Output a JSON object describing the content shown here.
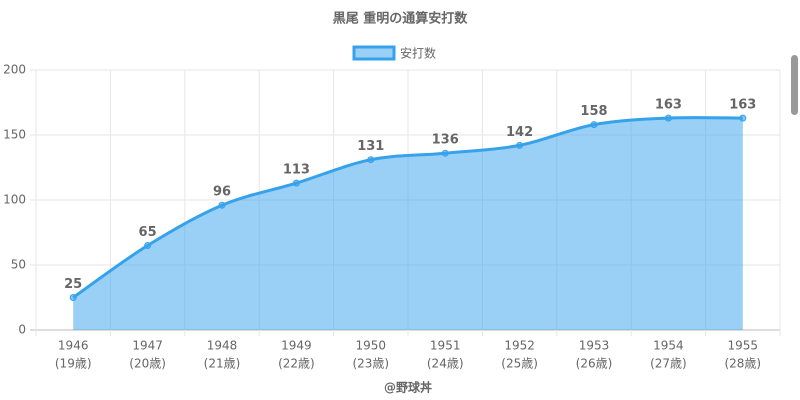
{
  "chart_data": {
    "type": "area",
    "title": "黒尾 重明の通算安打数",
    "categories": [
      [
        "1946",
        "(19歳)"
      ],
      [
        "1947",
        "(20歳)"
      ],
      [
        "1948",
        "(21歳)"
      ],
      [
        "1949",
        "(22歳)"
      ],
      [
        "1950",
        "(23歳)"
      ],
      [
        "1951",
        "(24歳)"
      ],
      [
        "1952",
        "(25歳)"
      ],
      [
        "1953",
        "(26歳)"
      ],
      [
        "1954",
        "(27歳)"
      ],
      [
        "1955",
        "(28歳)"
      ]
    ],
    "series": [
      {
        "name": "安打数",
        "color": "#36a2eb",
        "values": [
          25,
          65,
          96,
          113,
          131,
          136,
          142,
          158,
          163,
          163
        ]
      }
    ],
    "x_label": "@野球丼",
    "ylim": [
      0,
      200
    ],
    "yticks": [
      0,
      50,
      100,
      150,
      200
    ],
    "grid": true,
    "legend": "top"
  }
}
